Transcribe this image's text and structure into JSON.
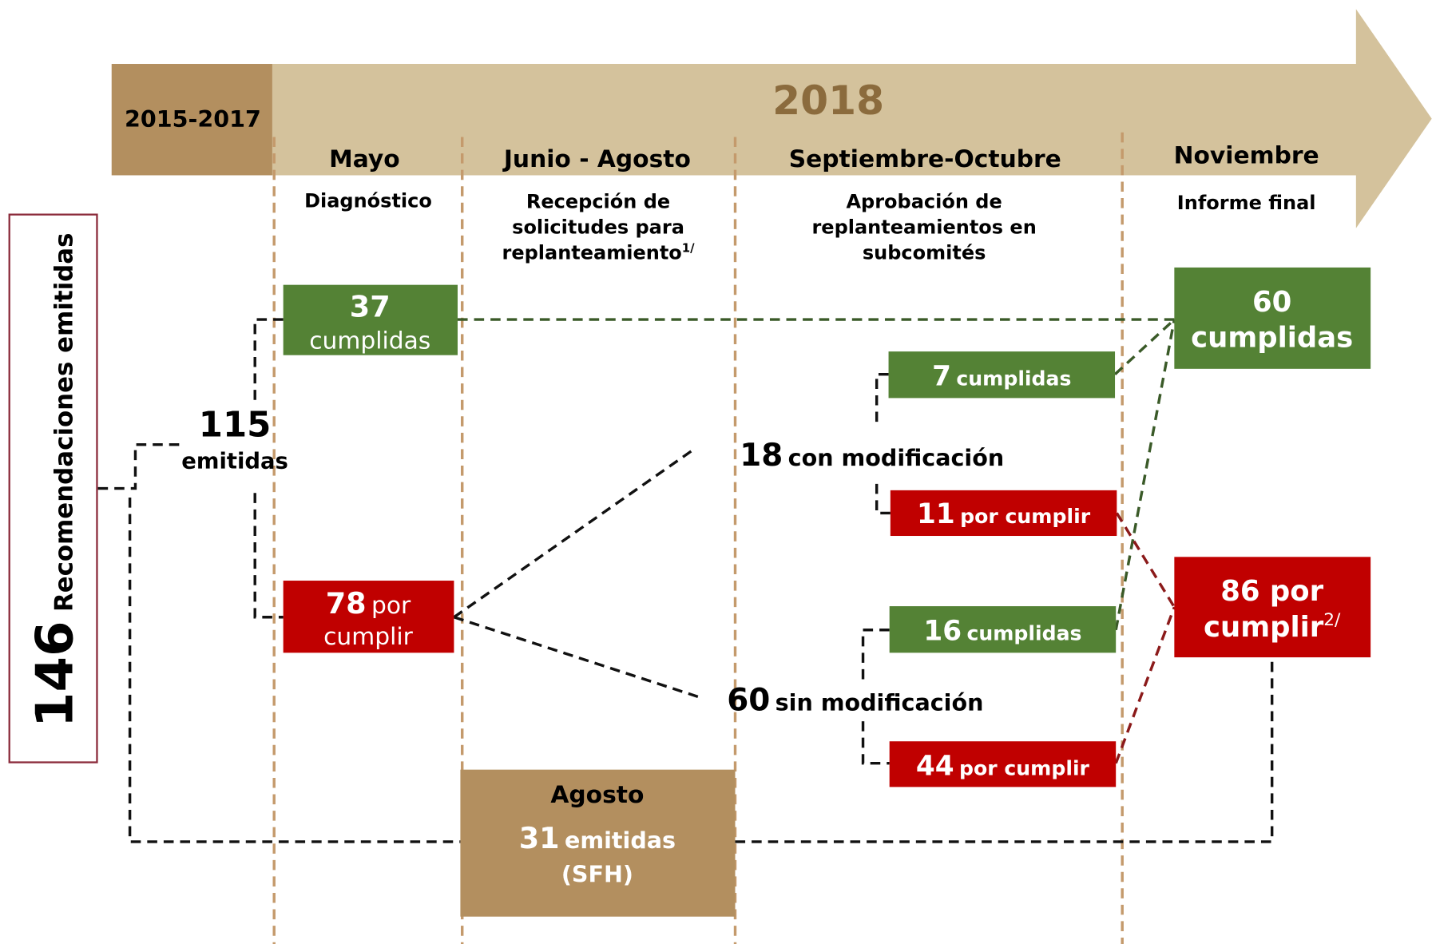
{
  "header": {
    "period": "2015-2017",
    "year": "2018"
  },
  "columns": [
    {
      "month": "Mayo",
      "stage": [
        "Diagnóstico"
      ]
    },
    {
      "month": "Junio - Agosto",
      "stage": [
        "Recepción de",
        "solicitudes para",
        "replanteamiento"
      ],
      "note": "1/"
    },
    {
      "month": "Septiembre-Octubre",
      "stage": [
        "Aprobación de",
        "replanteamientos en",
        "subcomités"
      ]
    },
    {
      "month": "Noviembre",
      "stage": [
        "Informe final"
      ]
    }
  ],
  "total": {
    "value": "146",
    "label": "Recomendaciones emitidas"
  },
  "nodes": {
    "emitted": {
      "value": "115",
      "label": "emitidas"
    },
    "met": {
      "value": "37",
      "label": "cumplidas"
    },
    "pending": {
      "value": "78",
      "lines": [
        "por",
        "cumplir"
      ]
    },
    "with_changes": {
      "value": "18",
      "label": "con modificación"
    },
    "without_changes": {
      "value": "60",
      "label": "sin modificación"
    },
    "with_met": {
      "value": "7",
      "label": "cumplidas"
    },
    "with_pending": {
      "value": "11",
      "label": "por cumplir"
    },
    "without_met": {
      "value": "16",
      "label": "cumplidas"
    },
    "without_pending": {
      "value": "44",
      "label": "por cumplir"
    },
    "final_met": {
      "value": "60",
      "label": "cumplidas"
    },
    "final_pending": {
      "value": "86",
      "lines": [
        "por",
        "cumplir"
      ],
      "note": "2/"
    },
    "august": {
      "month": "Agosto",
      "value": "31",
      "label": "emitidas",
      "source": "(SFH)"
    }
  }
}
